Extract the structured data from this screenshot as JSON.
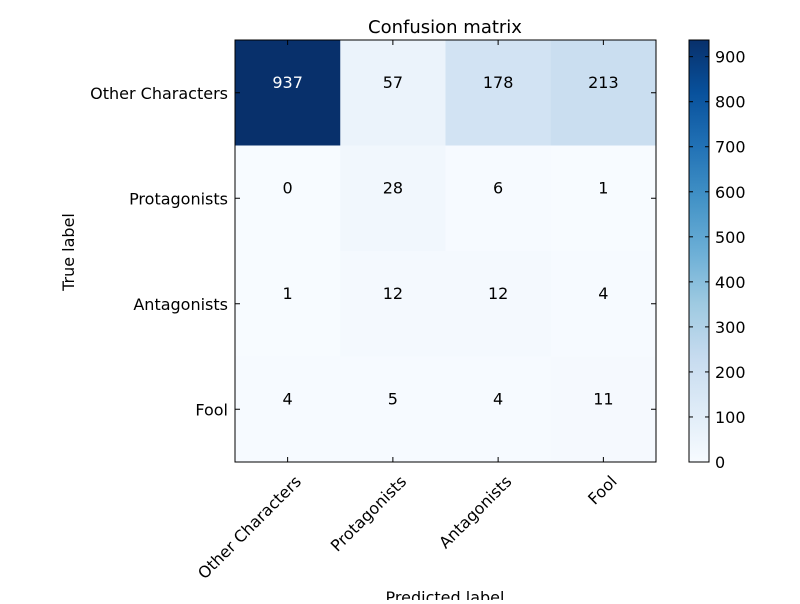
{
  "chart_data": {
    "type": "heatmap",
    "title": "Confusion matrix",
    "xlabel": "Predicted label",
    "ylabel": "True label",
    "x_categories": [
      "Other Characters",
      "Protagonists",
      "Antagonists",
      "Fool"
    ],
    "y_categories": [
      "Other Characters",
      "Protagonists",
      "Antagonists",
      "Fool"
    ],
    "values": [
      [
        937,
        57,
        178,
        213
      ],
      [
        0,
        28,
        6,
        1
      ],
      [
        1,
        12,
        12,
        4
      ],
      [
        4,
        5,
        4,
        11
      ]
    ],
    "colorbar": {
      "colormap": "Blues",
      "range": [
        0,
        937
      ],
      "ticks": [
        0,
        100,
        200,
        300,
        400,
        500,
        600,
        700,
        800,
        900
      ]
    },
    "colors": {
      "colormap_low": "#f7fbff",
      "colormap_high": "#08306b",
      "high_value_text": "#ffffff",
      "low_value_text": "#000000"
    }
  }
}
